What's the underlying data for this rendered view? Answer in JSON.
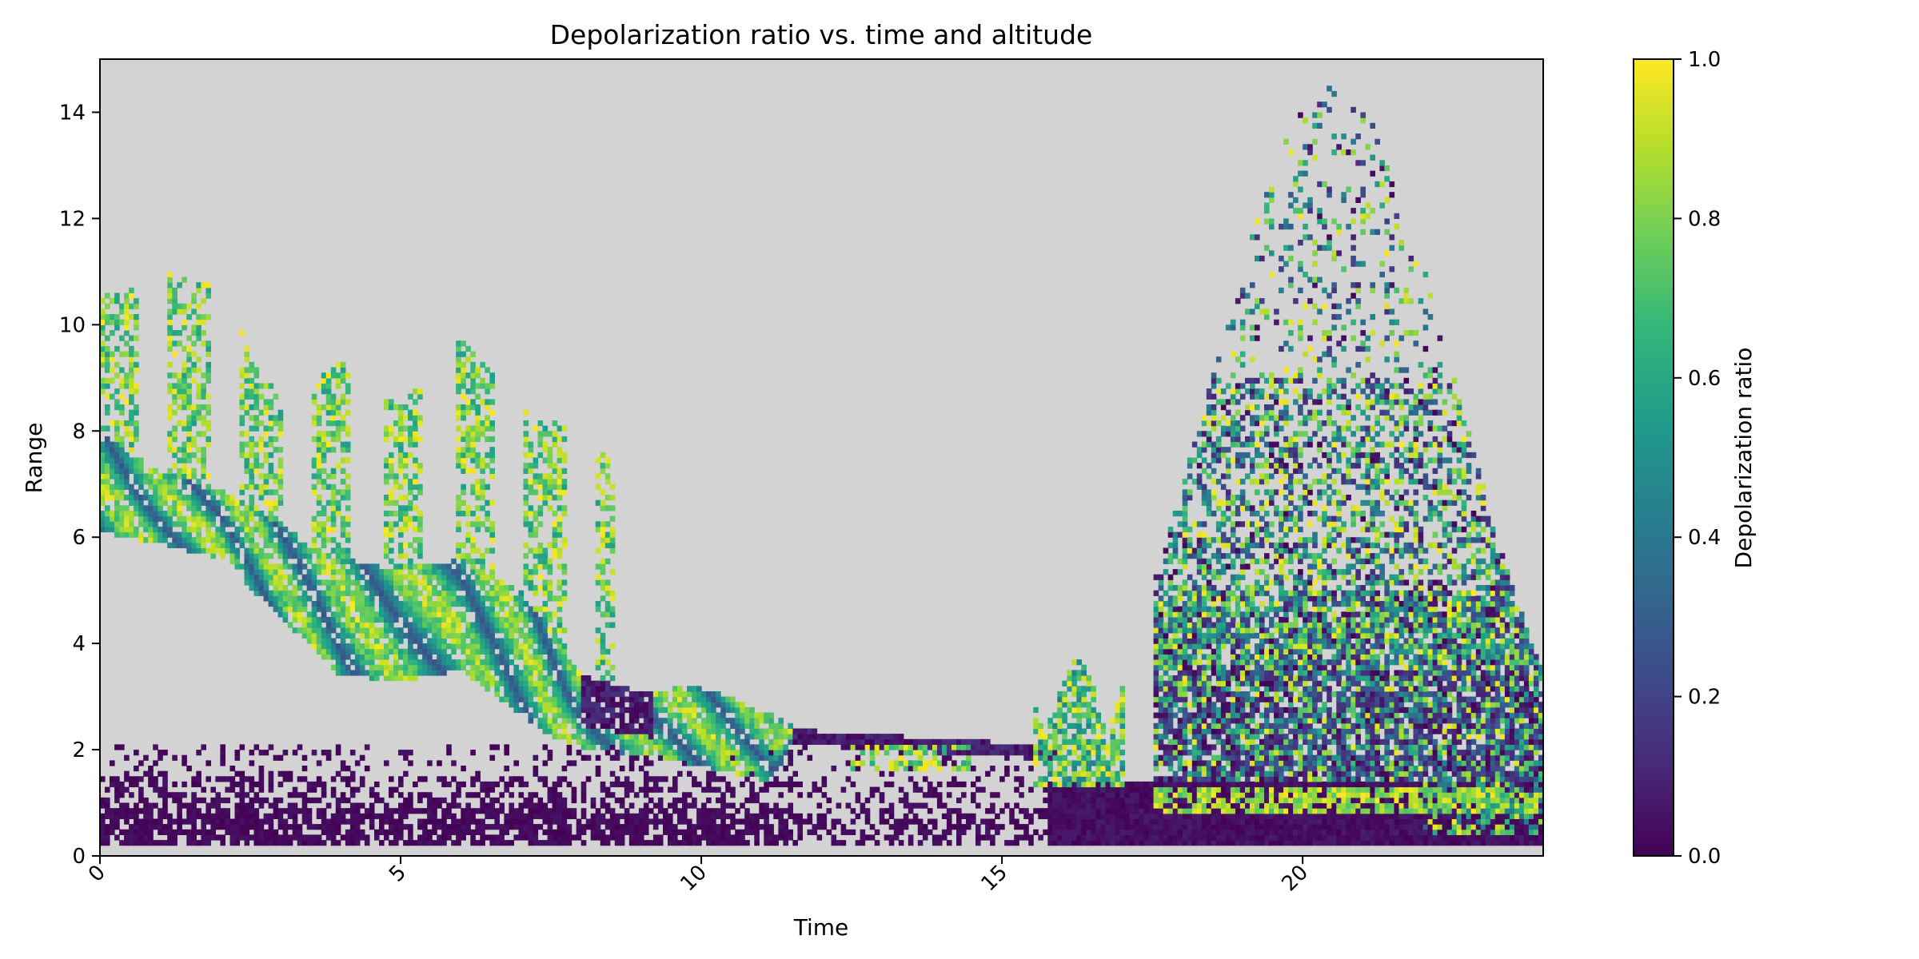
{
  "chart_data": {
    "type": "heatmap",
    "title": "Depolarization ratio vs. time and altitude",
    "xlabel": "Time",
    "ylabel": "Range",
    "xlim": [
      0,
      24
    ],
    "ylim": [
      0,
      15
    ],
    "xticks": [
      0,
      5,
      10,
      15,
      20
    ],
    "yticks": [
      0,
      2,
      4,
      6,
      8,
      10,
      12,
      14
    ],
    "x_tick_rotation_deg": 45,
    "background_color": "#d3d3d3",
    "colormap": "viridis",
    "colorbar": {
      "label": "Depolarization ratio",
      "range": [
        0,
        1
      ],
      "ticks": [
        0.0,
        0.2,
        0.4,
        0.6,
        0.8,
        1.0
      ],
      "tick_labels": [
        "0.0",
        "0.2",
        "0.4",
        "0.6",
        "0.8",
        "1.0"
      ],
      "stops": [
        "#440154",
        "#482878",
        "#3e4a89",
        "#31688e",
        "#26828e",
        "#1f9e89",
        "#35b779",
        "#6ece58",
        "#b5de2b",
        "#fde725"
      ]
    },
    "features": [
      {
        "x_range": [
          0,
          11.5
        ],
        "y_range": [
          0.2,
          2.2
        ],
        "value_range": [
          0,
          0.05
        ],
        "pattern": "patchy near-ground layer"
      },
      {
        "x_range": [
          11.5,
          15.8
        ],
        "y_range": [
          0.2,
          1.6
        ],
        "value_range": [
          0,
          0.05
        ],
        "pattern": "sparse near-ground layer"
      },
      {
        "x_range": [
          15.8,
          24
        ],
        "y_range": [
          0.2,
          1.4
        ],
        "value_range": [
          0,
          0.1
        ],
        "pattern": "dense near-ground layer"
      },
      {
        "x_range": [
          0,
          11.5
        ],
        "y_top": [
          8,
          2
        ],
        "value_range": [
          0.3,
          1.0
        ],
        "pattern": "descending depolarizing layer, base falls from ~6 to ~1.4"
      },
      {
        "x_range": [
          0,
          8.5
        ],
        "y_range": [
          6,
          11
        ],
        "value_range": [
          0.6,
          1.0
        ],
        "pattern": "fall streaks, highest near x=1 (~11)"
      },
      {
        "x_range": [
          11.5,
          16
        ],
        "y_range": [
          1.6,
          2.5
        ],
        "value_range": [
          0,
          0.2
        ],
        "pattern": "thin low-depolarization layer near 2"
      },
      {
        "x_range": [
          15.5,
          17
        ],
        "y_range": [
          1.2,
          3.7
        ],
        "value_range": [
          0.4,
          1.0
        ],
        "pattern": "convective cells"
      },
      {
        "x_range": [
          17.5,
          23.5
        ],
        "y_range": [
          0.8,
          1.8
        ],
        "value_range": [
          0.6,
          1.0
        ],
        "pattern": "bright layer near 1.2"
      },
      {
        "x_range": [
          17.5,
          24
        ],
        "y_range": [
          1.5,
          15
        ],
        "value_range": [
          0,
          1.0
        ],
        "pattern": "noisy scattered returns, peak near x=20"
      }
    ]
  }
}
